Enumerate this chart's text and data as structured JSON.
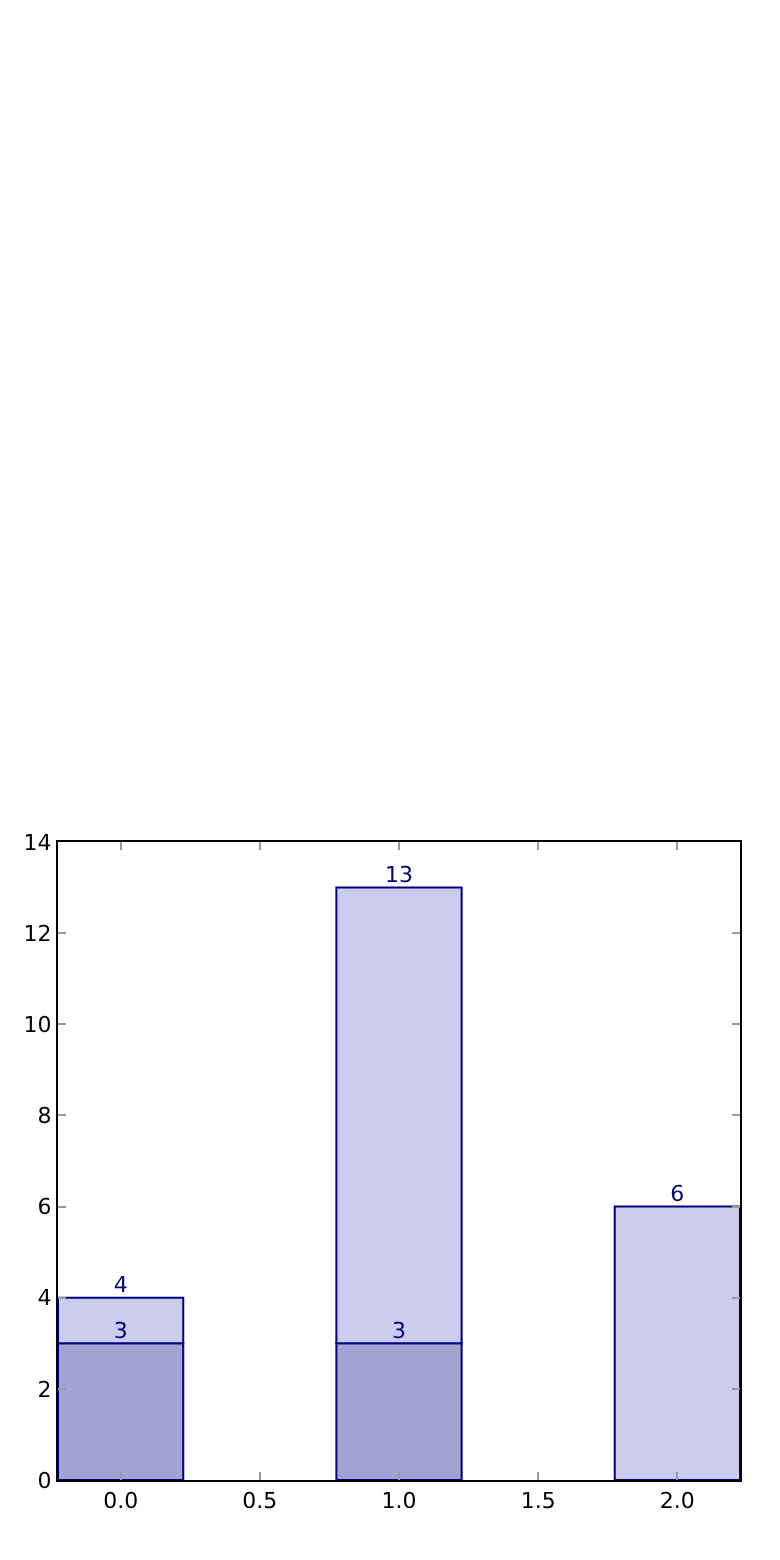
{
  "chart_data": {
    "type": "bar",
    "stacked": true,
    "series": [
      {
        "color": "#a3a3d3",
        "values": [
          3,
          3
        ],
        "x": [
          0,
          1
        ],
        "value_labels": [
          "3",
          "3"
        ]
      },
      {
        "color": "#ccccee",
        "values": [
          1,
          10,
          6
        ],
        "x": [
          0,
          1,
          2
        ]
      }
    ],
    "totals": [
      "4",
      "13",
      "6"
    ],
    "xlim": [
      -0.225,
      2.225
    ],
    "xticks": [
      {
        "value": 0,
        "label": "0.0"
      },
      0.5,
      {
        "value": 1,
        "label": "1.0"
      },
      1.5,
      {
        "value": 2,
        "label": "2.0"
      }
    ],
    "ylim": [
      0,
      14
    ],
    "yticks": [
      0,
      2,
      4,
      6,
      8,
      10,
      12,
      14
    ]
  }
}
